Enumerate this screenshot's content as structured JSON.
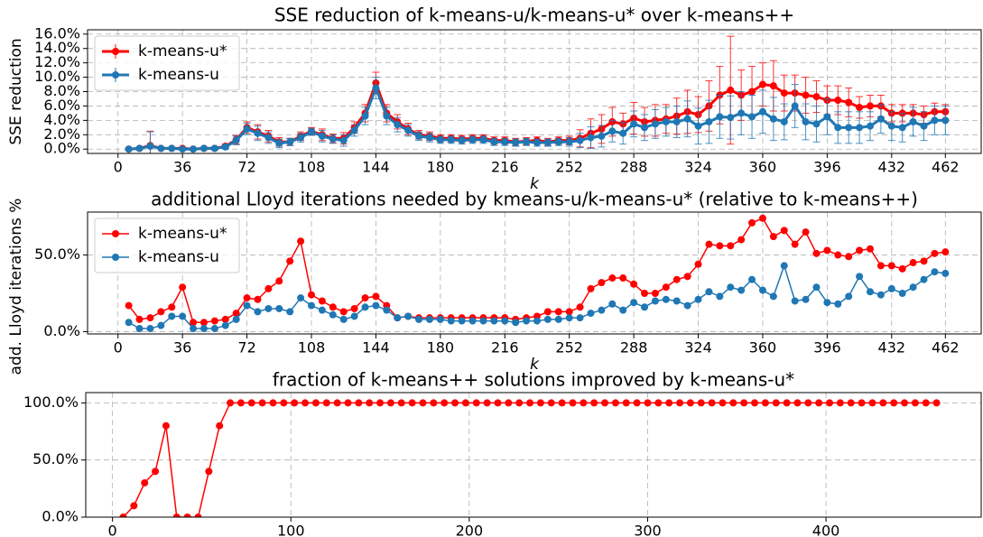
{
  "chart_data": [
    {
      "type": "line",
      "title": "SSE reduction of k-means-u/k-means-u* over k-means++",
      "x_label": "k",
      "y_label": "SSE reduction",
      "x": [
        6,
        12,
        18,
        24,
        30,
        36,
        42,
        48,
        54,
        60,
        66,
        72,
        78,
        84,
        90,
        96,
        102,
        108,
        114,
        120,
        126,
        132,
        138,
        144,
        150,
        156,
        162,
        168,
        174,
        180,
        186,
        192,
        198,
        204,
        210,
        216,
        222,
        228,
        234,
        240,
        246,
        252,
        258,
        264,
        270,
        276,
        282,
        288,
        294,
        300,
        306,
        312,
        318,
        324,
        330,
        336,
        342,
        348,
        354,
        360,
        366,
        372,
        378,
        384,
        390,
        396,
        402,
        408,
        414,
        420,
        426,
        432,
        438,
        444,
        450,
        456,
        462
      ],
      "series": [
        {
          "name": "k-means-u*",
          "color": "#ff0000",
          "values": [
            0,
            0.1,
            0.5,
            0.1,
            0.1,
            0.1,
            0,
            0.1,
            0.1,
            0.4,
            1.3,
            3.0,
            2.4,
            1.8,
            1.0,
            1.0,
            1.8,
            2.5,
            2.0,
            1.5,
            1.5,
            3.0,
            5.0,
            9.2,
            5.0,
            3.8,
            2.8,
            2.0,
            1.8,
            1.5,
            1.5,
            1.4,
            1.5,
            1.5,
            1.2,
            1.2,
            1.0,
            1.1,
            1.2,
            1.0,
            1.2,
            1.2,
            1.5,
            2.2,
            2.8,
            3.8,
            3.5,
            4.3,
            3.8,
            4.0,
            4.2,
            4.6,
            5.2,
            4.8,
            6.0,
            7.5,
            8.2,
            7.5,
            8.0,
            9.0,
            8.8,
            7.8,
            7.8,
            7.5,
            7.3,
            6.8,
            6.8,
            6.5,
            5.8,
            6.0,
            6.0,
            5.0,
            5.0,
            5.0,
            4.8,
            5.2,
            5.2
          ],
          "errors": [
            0.1,
            0.1,
            2,
            0.1,
            0.1,
            0.1,
            0.1,
            0.1,
            0.2,
            0.3,
            0.6,
            0.8,
            1.0,
            0.8,
            0.6,
            0.5,
            0.6,
            0.5,
            0.8,
            0.6,
            0.8,
            0.8,
            1.2,
            1.5,
            1.2,
            1,
            0.8,
            0.6,
            0.6,
            0.5,
            0.5,
            0.5,
            0.5,
            0.5,
            0.5,
            0.5,
            0.5,
            0.5,
            0.5,
            0.5,
            0.5,
            0.6,
            1.2,
            2.0,
            2.0,
            2.0,
            1.5,
            2.2,
            2.0,
            2.2,
            2.0,
            2.5,
            3.0,
            2.5,
            3.5,
            4.0,
            7.5,
            3.5,
            3.5,
            3.0,
            3.5,
            2.5,
            2.5,
            2.5,
            2.2,
            2.0,
            2.0,
            2.0,
            1.5,
            1.5,
            1.5,
            1.2,
            1.2,
            1.2,
            1.2,
            1.2,
            1.0
          ]
        },
        {
          "name": "k-means-u",
          "color": "#1f77b4",
          "values": [
            0,
            0.1,
            0.4,
            0.1,
            0.1,
            0,
            0,
            0.1,
            0.1,
            0.3,
            1.2,
            2.8,
            2.2,
            1.6,
            0.8,
            1.0,
            1.6,
            2.4,
            1.8,
            1.4,
            1.2,
            2.6,
            4.6,
            8.5,
            4.6,
            3.4,
            2.6,
            1.8,
            1.6,
            1.3,
            1.3,
            1.2,
            1.3,
            1.3,
            1.0,
            1.0,
            0.9,
            1.0,
            0.9,
            0.9,
            1.0,
            1.0,
            1.2,
            1.6,
            1.8,
            2.5,
            2.2,
            3.5,
            3.0,
            3.5,
            3.8,
            3.8,
            4.2,
            3.2,
            3.8,
            4.5,
            4.4,
            5.0,
            4.5,
            5.2,
            4.2,
            3.8,
            6.0,
            3.8,
            3.5,
            4.5,
            3.0,
            3.0,
            3.0,
            3.2,
            4.2,
            3.2,
            3.0,
            3.8,
            3.2,
            4.0,
            4.0
          ],
          "errors": [
            0.1,
            0.1,
            2,
            0.1,
            0.1,
            0.1,
            0.1,
            0.1,
            0.2,
            0.3,
            0.6,
            0.8,
            1.0,
            0.8,
            0.6,
            0.5,
            0.6,
            0.5,
            0.8,
            0.6,
            0.8,
            0.8,
            1.2,
            1.5,
            1.2,
            1,
            0.8,
            0.6,
            0.6,
            0.5,
            0.5,
            0.5,
            0.5,
            0.5,
            0.5,
            0.5,
            0.5,
            0.5,
            0.5,
            0.5,
            0.5,
            0.6,
            1.0,
            1.5,
            1.5,
            1.5,
            1.5,
            1.8,
            1.8,
            2.0,
            2.0,
            2.2,
            2.5,
            2.5,
            3.0,
            3.0,
            3.0,
            3.0,
            3.0,
            3.0,
            3.0,
            2.5,
            3.0,
            2.5,
            2.5,
            2.5,
            2.2,
            2.2,
            2.2,
            2.0,
            2.0,
            2.0,
            2.0,
            2.0,
            2.0,
            2.0,
            2.0
          ]
        }
      ],
      "xlim": [
        -17,
        482
      ],
      "xticks": [
        0,
        36,
        72,
        108,
        144,
        180,
        216,
        252,
        288,
        324,
        360,
        396,
        432,
        462
      ],
      "ylim": [
        -0.6,
        16.6
      ],
      "yticks": [
        {
          "value": 0,
          "label": "0.0%"
        },
        {
          "value": 2,
          "label": "2.0%"
        },
        {
          "value": 4,
          "label": "4.0%"
        },
        {
          "value": 6,
          "label": "6.0%"
        },
        {
          "value": 8,
          "label": "8.0%"
        },
        {
          "value": 10,
          "label": "10.0%"
        },
        {
          "value": 12,
          "label": "12.0%"
        },
        {
          "value": 14,
          "label": "14.0%"
        },
        {
          "value": 16,
          "label": "16.0%"
        }
      ],
      "grid": true,
      "legend": "upper left"
    },
    {
      "type": "line",
      "title": "additional Lloyd iterations needed by kmeans-u/k-means-u* (relative to k-means++)",
      "x_label": "k",
      "y_label": "add. Lloyd iterations %",
      "x": [
        6,
        12,
        18,
        24,
        30,
        36,
        42,
        48,
        54,
        60,
        66,
        72,
        78,
        84,
        90,
        96,
        102,
        108,
        114,
        120,
        126,
        132,
        138,
        144,
        150,
        156,
        162,
        168,
        174,
        180,
        186,
        192,
        198,
        204,
        210,
        216,
        222,
        228,
        234,
        240,
        246,
        252,
        258,
        264,
        270,
        276,
        282,
        288,
        294,
        300,
        306,
        312,
        318,
        324,
        330,
        336,
        342,
        348,
        354,
        360,
        366,
        372,
        378,
        384,
        390,
        396,
        402,
        408,
        414,
        420,
        426,
        432,
        438,
        444,
        450,
        456,
        462
      ],
      "series": [
        {
          "name": "k-means-u*",
          "color": "#ff0000",
          "values": [
            17,
            8,
            9,
            13,
            16,
            29,
            6,
            6,
            7,
            8,
            12,
            22,
            21,
            28,
            33,
            46,
            59,
            24,
            20,
            16,
            13,
            15,
            22,
            23,
            17,
            9,
            10,
            9,
            9,
            9,
            9,
            9,
            9,
            9,
            9,
            9,
            8,
            9,
            10,
            13,
            13,
            13,
            16,
            28,
            32,
            35,
            35,
            31,
            25,
            25,
            29,
            34,
            36,
            44,
            57,
            56,
            56,
            60,
            71,
            74,
            62,
            66,
            57,
            65,
            51,
            53,
            50,
            49,
            53,
            54,
            43,
            43,
            41,
            45,
            46,
            51,
            52
          ]
        },
        {
          "name": "k-means-u",
          "color": "#1f77b4",
          "values": [
            6,
            2,
            2,
            4,
            10,
            10,
            2,
            2,
            2,
            4,
            8,
            17,
            13,
            15,
            15,
            13,
            22,
            17,
            14,
            11,
            8,
            10,
            16,
            17,
            14,
            9,
            10,
            8,
            8,
            8,
            7,
            7,
            7,
            7,
            7,
            7,
            6,
            7,
            7,
            8,
            8,
            9,
            9,
            12,
            14,
            18,
            14,
            19,
            16,
            20,
            21,
            20,
            17,
            21,
            26,
            23,
            29,
            27,
            34,
            27,
            23,
            43,
            20,
            21,
            29,
            19,
            18,
            23,
            36,
            26,
            24,
            28,
            25,
            29,
            34,
            39,
            38
          ]
        }
      ],
      "xlim": [
        -17,
        482
      ],
      "xticks": [
        0,
        36,
        72,
        108,
        144,
        180,
        216,
        252,
        288,
        324,
        360,
        396,
        432,
        462
      ],
      "ylim": [
        -1.5,
        78
      ],
      "yticks": [
        {
          "value": 0,
          "label": "0.0%"
        },
        {
          "value": 50,
          "label": "50.0%"
        }
      ],
      "grid": true,
      "legend": "upper left"
    },
    {
      "type": "line",
      "title": "fraction of k-means++ solutions improved by k-means-u*",
      "x": [
        6,
        12,
        18,
        24,
        30,
        36,
        42,
        48,
        54,
        60,
        66,
        72,
        78,
        84,
        90,
        96,
        102,
        108,
        114,
        120,
        126,
        132,
        138,
        144,
        150,
        156,
        162,
        168,
        174,
        180,
        186,
        192,
        198,
        204,
        210,
        216,
        222,
        228,
        234,
        240,
        246,
        252,
        258,
        264,
        270,
        276,
        282,
        288,
        294,
        300,
        306,
        312,
        318,
        324,
        330,
        336,
        342,
        348,
        354,
        360,
        366,
        372,
        378,
        384,
        390,
        396,
        402,
        408,
        414,
        420,
        426,
        432,
        438,
        444,
        450,
        456,
        462
      ],
      "series": [
        {
          "color": "#ff0000",
          "values": [
            0,
            10,
            30,
            40,
            80,
            0,
            0,
            0,
            40,
            80,
            100,
            100,
            100,
            100,
            100,
            100,
            100,
            100,
            100,
            100,
            100,
            100,
            100,
            100,
            100,
            100,
            100,
            100,
            100,
            100,
            100,
            100,
            100,
            100,
            100,
            100,
            100,
            100,
            100,
            100,
            100,
            100,
            100,
            100,
            100,
            100,
            100,
            100,
            100,
            100,
            100,
            100,
            100,
            100,
            100,
            100,
            100,
            100,
            100,
            100,
            100,
            100,
            100,
            100,
            100,
            100,
            100,
            100,
            100,
            100,
            100,
            100,
            100,
            100,
            100,
            100,
            100
          ]
        }
      ],
      "xlim": [
        -15,
        487
      ],
      "xticks": [
        0,
        100,
        200,
        300,
        400
      ],
      "ylim": [
        0,
        109
      ],
      "yticks": [
        {
          "value": 0,
          "label": "0.0%"
        },
        {
          "value": 50,
          "label": "50.0%"
        },
        {
          "value": 100,
          "label": "100.0%"
        }
      ],
      "grid": true
    }
  ]
}
